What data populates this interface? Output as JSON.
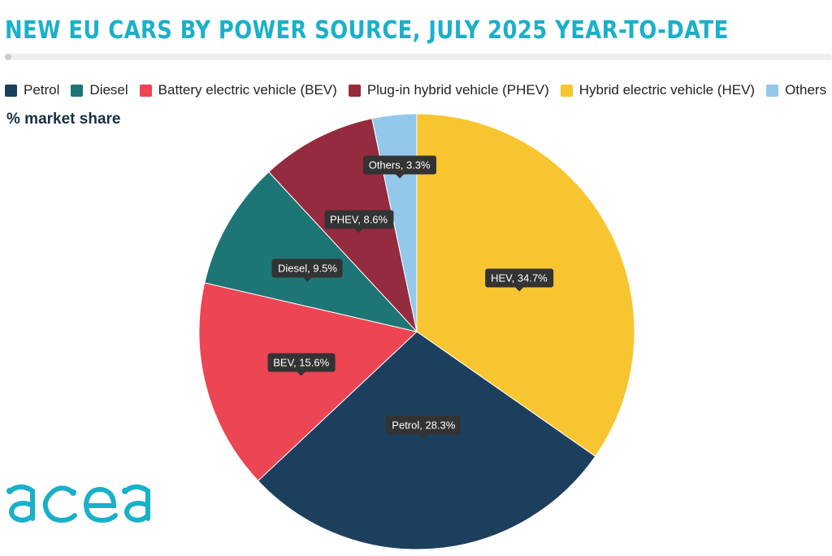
{
  "chart_data": {
    "type": "pie",
    "title": "NEW EU CARS BY POWER SOURCE, JULY 2025 YEAR-TO-DATE",
    "subtitle": "% market share",
    "legend_position": "top",
    "series": [
      {
        "name": "Hybrid electric vehicle (HEV)",
        "short": "HEV",
        "value": 34.7,
        "color": "#f7c530"
      },
      {
        "name": "Petrol",
        "short": "Petrol",
        "value": 28.3,
        "color": "#1d3f5e"
      },
      {
        "name": "Battery electric vehicle (BEV)",
        "short": "BEV",
        "value": 15.6,
        "color": "#ec4554"
      },
      {
        "name": "Diesel",
        "short": "Diesel",
        "value": 9.5,
        "color": "#1e7575"
      },
      {
        "name": "Plug-in hybrid vehicle (PHEV)",
        "short": "PHEV",
        "value": 8.6,
        "color": "#952b3e"
      },
      {
        "name": "Others",
        "short": "Others",
        "value": 3.3,
        "color": "#93c8ea"
      }
    ],
    "legend_order": [
      "Petrol",
      "Diesel",
      "Battery electric vehicle (BEV)",
      "Plug-in hybrid vehicle (PHEV)",
      "Hybrid electric vehicle (HEV)",
      "Others"
    ],
    "slice_labels": [
      "HEV, 34.7%",
      "Petrol, 28.3%",
      "BEV, 15.6%",
      "Diesel, 9.5%",
      "PHEV, 8.6%",
      "Others, 3.3%"
    ]
  },
  "brand": {
    "logo_text": "acea",
    "color": "#1ab0c9"
  }
}
